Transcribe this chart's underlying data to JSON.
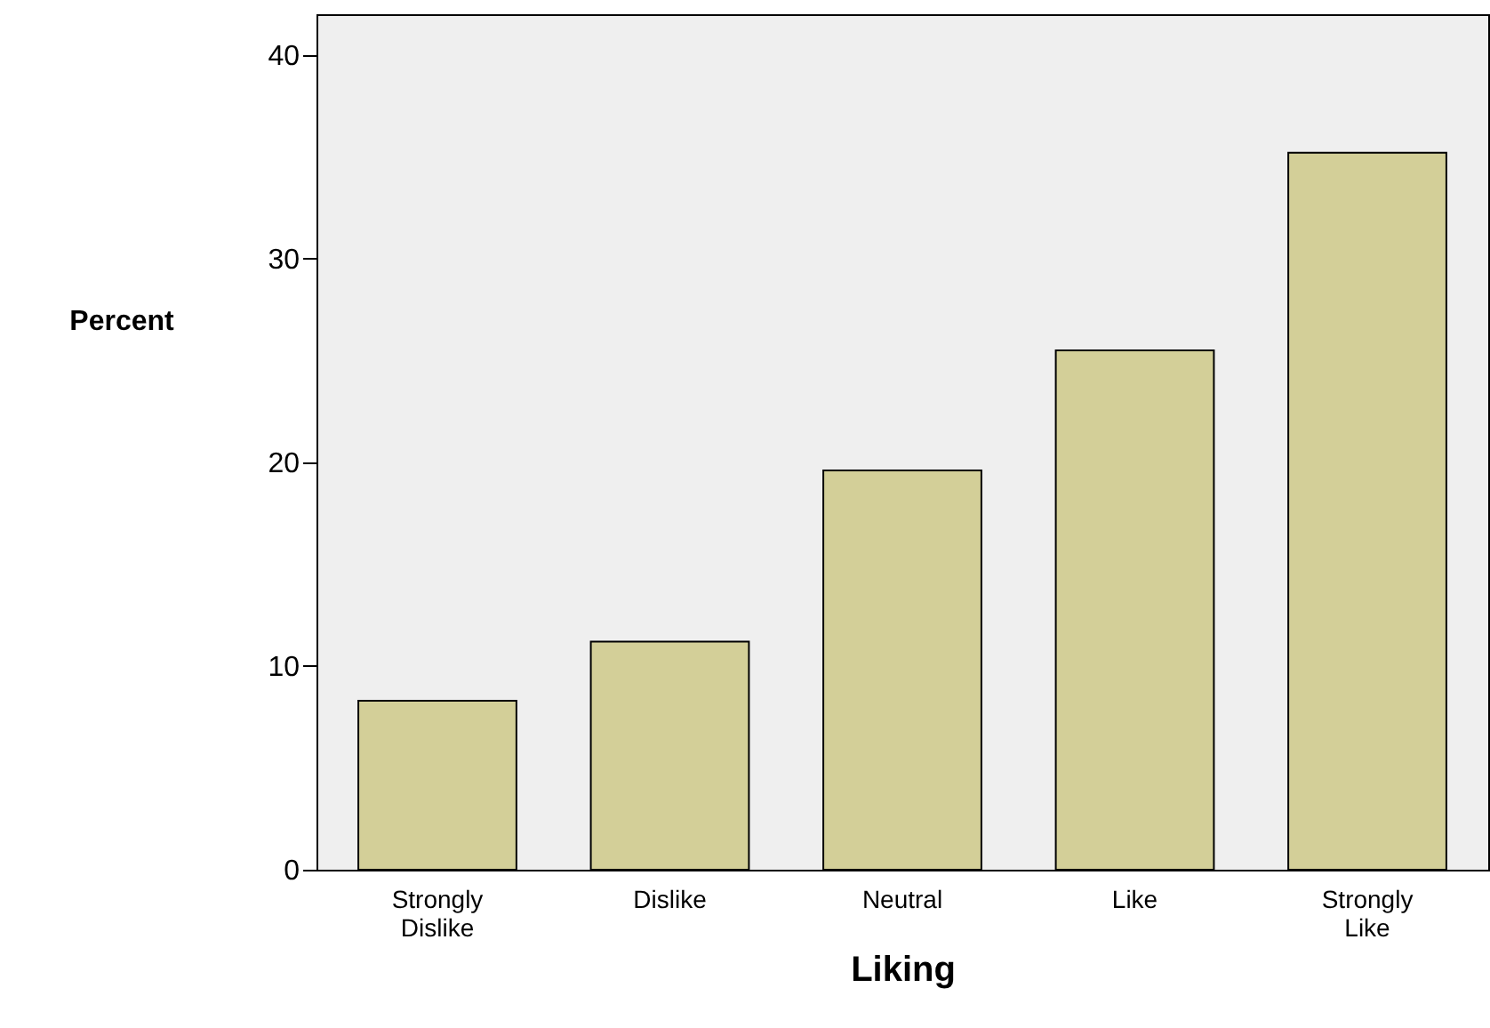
{
  "chart_data": {
    "type": "bar",
    "xlabel": "Liking",
    "ylabel": "Percent",
    "categories": [
      "Strongly Dislike",
      "Dislike",
      "Neutral",
      "Like",
      "Strongly Like"
    ],
    "values": [
      8.3,
      11.2,
      19.6,
      25.5,
      35.2
    ],
    "color": "#d3cf98",
    "ylim": [
      0,
      42
    ],
    "yticks": [
      0,
      10,
      20,
      30,
      40
    ],
    "grid": false
  }
}
